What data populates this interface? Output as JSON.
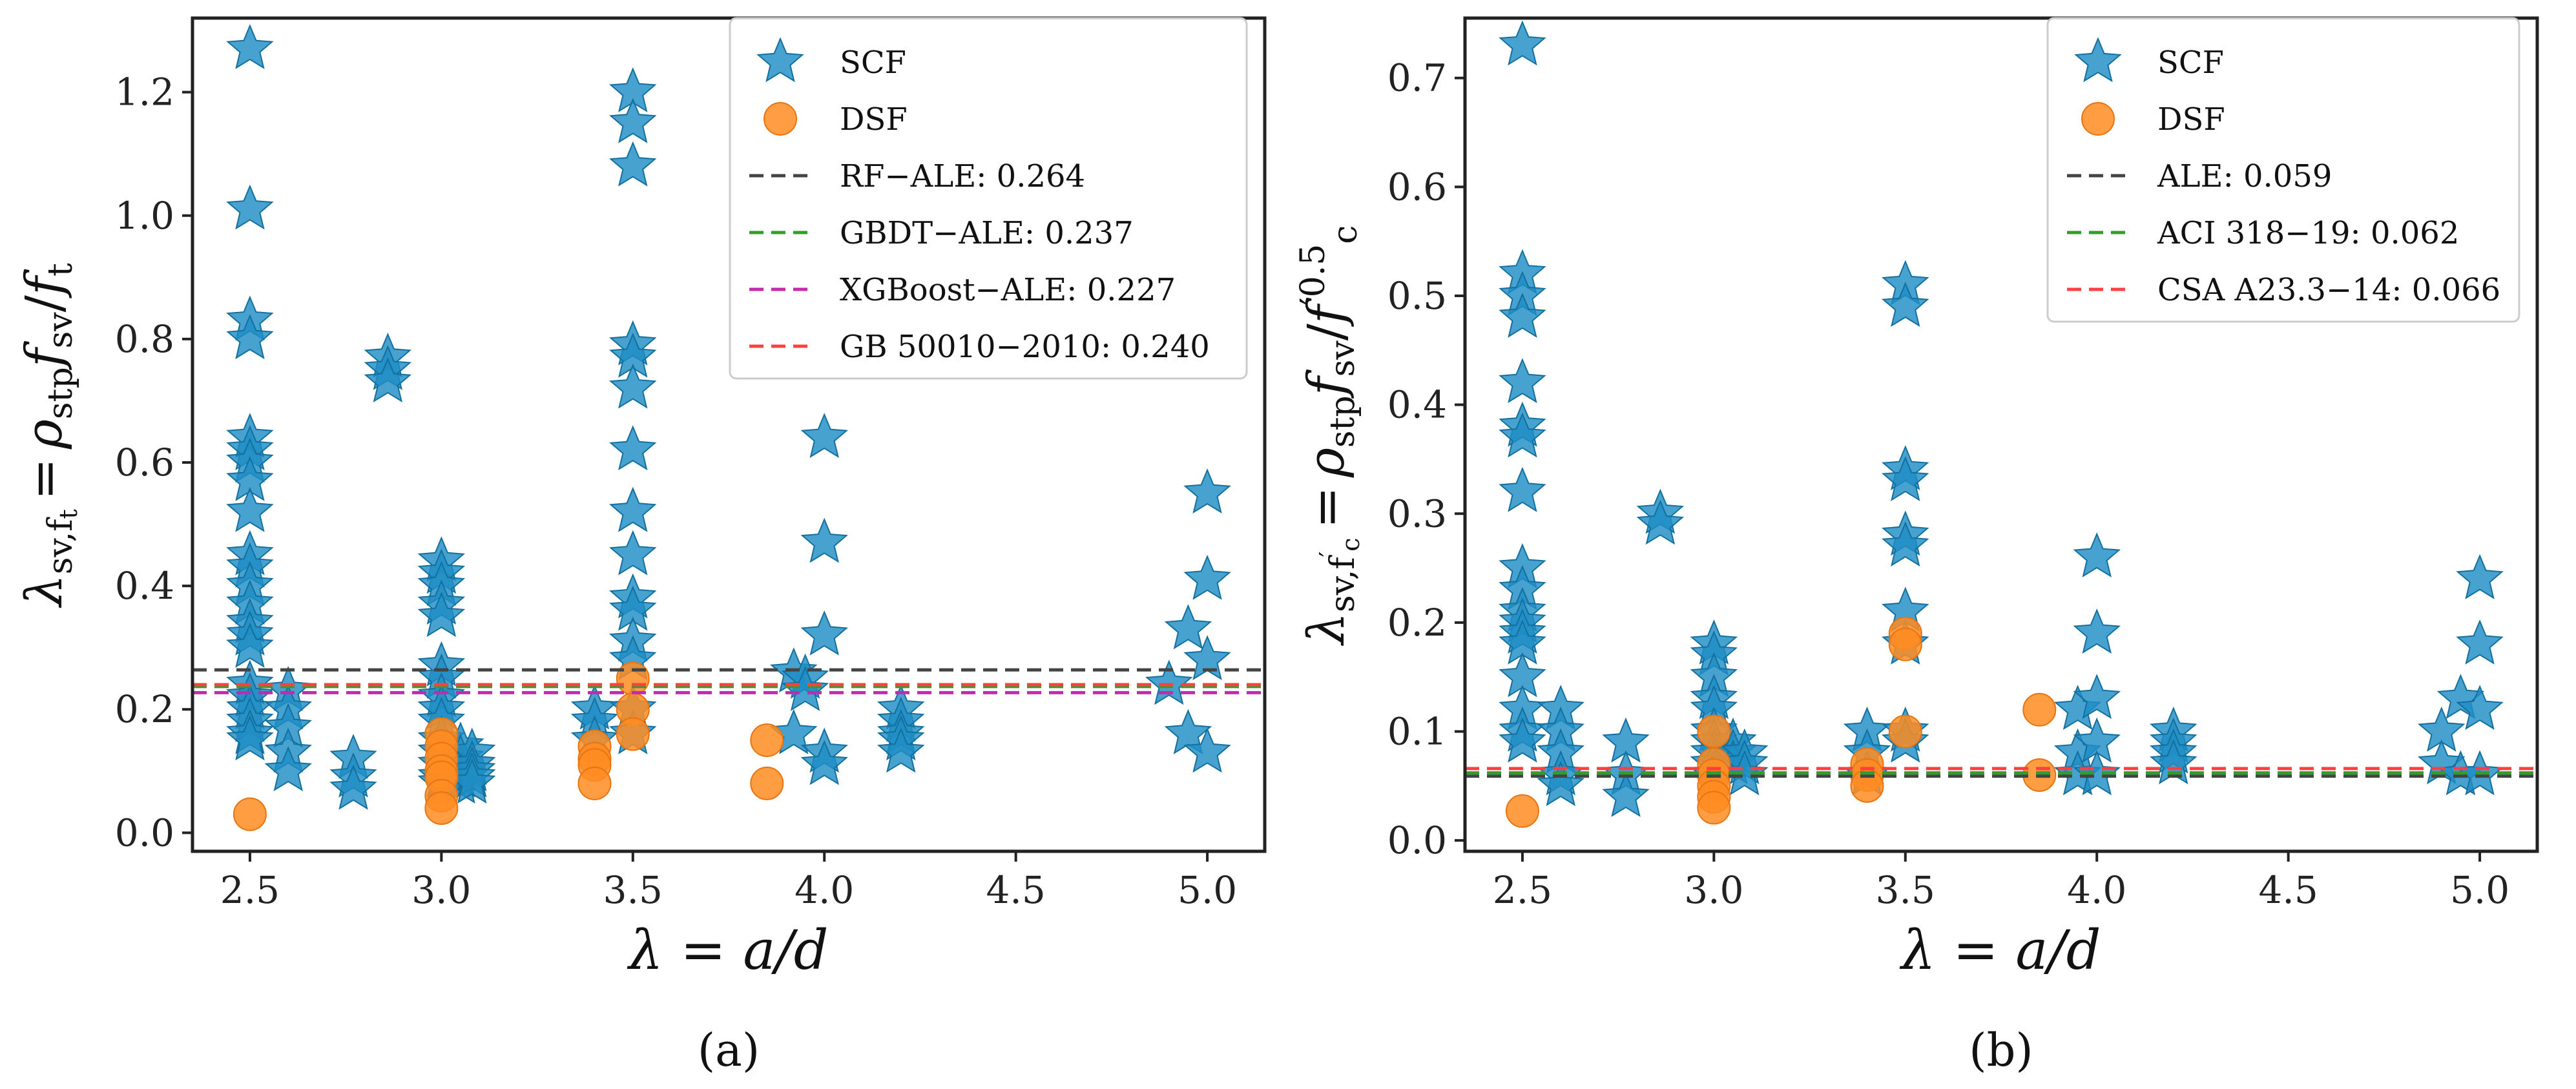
{
  "chart_data": [
    {
      "type": "scatter",
      "panel_label": "(a)",
      "xlabel": "λ = a/d",
      "ylabel": {
        "lambda": "λ",
        "lambda_sub": "sv,",
        "ft": "f",
        "ft_sub": "t",
        "eq": "=",
        "rho": "ρ",
        "rho_sub": "stp",
        "fsv": "f",
        "fsv_sub": "sv",
        "slash": "/",
        "fden": "f",
        "fden_sub": "t"
      },
      "xlim": [
        2.35,
        5.15
      ],
      "ylim": [
        -0.03,
        1.32
      ],
      "xticks": [
        "2.5",
        "3.0",
        "3.5",
        "4.0",
        "4.5",
        "5.0"
      ],
      "xtick_values": [
        2.5,
        3.0,
        3.5,
        4.0,
        4.5,
        5.0
      ],
      "yticks": [
        "0.0",
        "0.2",
        "0.4",
        "0.6",
        "0.8",
        "1.0",
        "1.2"
      ],
      "ytick_values": [
        0.0,
        0.2,
        0.4,
        0.6,
        0.8,
        1.0,
        1.2
      ],
      "legend_position": "top-right",
      "series": [
        {
          "name": "SCF",
          "marker": "star",
          "color": "#1f8ec4",
          "x": [
            2.5,
            2.5,
            2.5,
            2.5,
            2.5,
            2.5,
            2.5,
            2.5,
            2.5,
            2.5,
            2.5,
            2.5,
            2.5,
            2.5,
            2.5,
            2.5,
            2.5,
            2.5,
            2.5,
            2.5,
            2.5,
            2.5,
            2.6,
            2.6,
            2.6,
            2.6,
            2.6,
            2.77,
            2.77,
            2.77,
            2.86,
            2.86,
            2.86,
            3.0,
            3.0,
            3.0,
            3.0,
            3.0,
            3.0,
            3.0,
            3.0,
            3.0,
            3.0,
            3.0,
            3.0,
            3.0,
            3.0,
            3.0,
            3.05,
            3.05,
            3.05,
            3.05,
            3.05,
            3.08,
            3.08,
            3.08,
            3.08,
            3.08,
            3.4,
            3.4,
            3.4,
            3.5,
            3.5,
            3.5,
            3.5,
            3.5,
            3.5,
            3.5,
            3.5,
            3.5,
            3.5,
            3.5,
            3.5,
            3.5,
            3.5,
            3.5,
            3.92,
            3.92,
            3.95,
            3.95,
            4.0,
            4.0,
            4.0,
            4.0,
            4.0,
            4.2,
            4.2,
            4.2,
            4.2,
            4.2,
            4.9,
            4.95,
            4.95,
            5.0,
            5.0,
            5.0,
            5.0
          ],
          "y": [
            1.27,
            1.01,
            0.83,
            0.8,
            0.64,
            0.62,
            0.6,
            0.57,
            0.52,
            0.45,
            0.43,
            0.4,
            0.37,
            0.34,
            0.32,
            0.3,
            0.24,
            0.22,
            0.2,
            0.18,
            0.16,
            0.15,
            0.23,
            0.2,
            0.17,
            0.13,
            0.1,
            0.12,
            0.09,
            0.07,
            0.77,
            0.75,
            0.73,
            0.44,
            0.42,
            0.4,
            0.37,
            0.35,
            0.27,
            0.25,
            0.22,
            0.2,
            0.18,
            0.15,
            0.13,
            0.11,
            0.09,
            0.08,
            0.14,
            0.12,
            0.1,
            0.09,
            0.08,
            0.13,
            0.11,
            0.1,
            0.09,
            0.08,
            0.2,
            0.18,
            0.15,
            1.2,
            1.15,
            1.08,
            0.79,
            0.77,
            0.72,
            0.62,
            0.52,
            0.45,
            0.38,
            0.36,
            0.31,
            0.28,
            0.2,
            0.16,
            0.26,
            0.16,
            0.25,
            0.23,
            0.64,
            0.47,
            0.32,
            0.13,
            0.11,
            0.2,
            0.18,
            0.16,
            0.15,
            0.13,
            0.24,
            0.33,
            0.16,
            0.55,
            0.41,
            0.28,
            0.13
          ]
        },
        {
          "name": "DSF",
          "marker": "circle",
          "color": "#ff8c22",
          "x": [
            2.5,
            3.0,
            3.0,
            3.0,
            3.0,
            3.0,
            3.0,
            3.0,
            3.4,
            3.4,
            3.4,
            3.4,
            3.5,
            3.5,
            3.5,
            3.85,
            3.85
          ],
          "y": [
            0.03,
            0.16,
            0.14,
            0.12,
            0.1,
            0.09,
            0.06,
            0.04,
            0.14,
            0.12,
            0.11,
            0.08,
            0.25,
            0.2,
            0.16,
            0.15,
            0.08
          ]
        }
      ],
      "reference_lines": [
        {
          "name": "RF−ALE: 0.264",
          "value": 0.264,
          "color": "#444444"
        },
        {
          "name": "GBDT−ALE: 0.237",
          "value": 0.237,
          "color": "#2ca02c"
        },
        {
          "name": "XGBoost−ALE: 0.227",
          "value": 0.227,
          "color": "#c02bb0"
        },
        {
          "name": "GB 50010−2010: 0.240",
          "value": 0.24,
          "color": "#ff4040"
        }
      ]
    },
    {
      "type": "scatter",
      "panel_label": "(b)",
      "xlabel": "λ = a/d",
      "ylabel": {
        "lambda": "λ",
        "lambda_sub": "sv,",
        "fc": "f",
        "fc_prime": "′",
        "fc_sub": "c",
        "eq": "=",
        "rho": "ρ",
        "rho_sub": "stp",
        "fsv": "f",
        "fsv_sub": "sv",
        "slash": "/",
        "fden": "f",
        "fden_prime": "′",
        "fden_exp": "0.5",
        "fden_sub": "c"
      },
      "xlim": [
        2.35,
        5.15
      ],
      "ylim": [
        -0.01,
        0.755
      ],
      "xticks": [
        "2.5",
        "3.0",
        "3.5",
        "4.0",
        "4.5",
        "5.0"
      ],
      "xtick_values": [
        2.5,
        3.0,
        3.5,
        4.0,
        4.5,
        5.0
      ],
      "yticks": [
        "0.0",
        "0.1",
        "0.2",
        "0.3",
        "0.4",
        "0.5",
        "0.6",
        "0.7"
      ],
      "ytick_values": [
        0.0,
        0.1,
        0.2,
        0.3,
        0.4,
        0.5,
        0.6,
        0.7
      ],
      "legend_position": "top-right",
      "series": [
        {
          "name": "SCF",
          "marker": "star",
          "color": "#1f8ec4",
          "x": [
            2.5,
            2.5,
            2.5,
            2.5,
            2.5,
            2.5,
            2.5,
            2.5,
            2.5,
            2.5,
            2.5,
            2.5,
            2.5,
            2.5,
            2.5,
            2.5,
            2.5,
            2.5,
            2.6,
            2.6,
            2.6,
            2.6,
            2.6,
            2.77,
            2.77,
            2.77,
            2.86,
            2.86,
            3.0,
            3.0,
            3.0,
            3.0,
            3.0,
            3.0,
            3.0,
            3.0,
            3.0,
            3.0,
            3.05,
            3.05,
            3.05,
            3.08,
            3.08,
            3.08,
            3.4,
            3.4,
            3.4,
            3.5,
            3.5,
            3.5,
            3.5,
            3.5,
            3.5,
            3.5,
            3.5,
            3.5,
            3.5,
            3.95,
            3.95,
            3.95,
            4.0,
            4.0,
            4.0,
            4.0,
            4.0,
            4.2,
            4.2,
            4.2,
            4.2,
            4.9,
            4.9,
            4.95,
            4.95,
            5.0,
            5.0,
            5.0,
            5.0
          ],
          "y": [
            0.73,
            0.52,
            0.5,
            0.48,
            0.42,
            0.38,
            0.37,
            0.32,
            0.25,
            0.23,
            0.21,
            0.2,
            0.19,
            0.18,
            0.15,
            0.12,
            0.1,
            0.09,
            0.12,
            0.1,
            0.08,
            0.06,
            0.05,
            0.09,
            0.06,
            0.04,
            0.3,
            0.29,
            0.18,
            0.17,
            0.15,
            0.13,
            0.12,
            0.1,
            0.09,
            0.08,
            0.07,
            0.06,
            0.09,
            0.08,
            0.07,
            0.08,
            0.07,
            0.06,
            0.1,
            0.08,
            0.06,
            0.51,
            0.49,
            0.34,
            0.33,
            0.28,
            0.27,
            0.21,
            0.18,
            0.1,
            0.09,
            0.12,
            0.08,
            0.06,
            0.26,
            0.19,
            0.13,
            0.09,
            0.06,
            0.1,
            0.09,
            0.08,
            0.07,
            0.1,
            0.07,
            0.13,
            0.06,
            0.24,
            0.18,
            0.12,
            0.06
          ]
        },
        {
          "name": "DSF",
          "marker": "circle",
          "color": "#ff8c22",
          "x": [
            2.5,
            3.0,
            3.0,
            3.0,
            3.0,
            3.0,
            3.0,
            3.4,
            3.4,
            3.4,
            3.5,
            3.5,
            3.5,
            3.85,
            3.85
          ],
          "y": [
            0.027,
            0.1,
            0.07,
            0.06,
            0.05,
            0.04,
            0.03,
            0.07,
            0.06,
            0.05,
            0.19,
            0.18,
            0.1,
            0.12,
            0.06
          ]
        }
      ],
      "reference_lines": [
        {
          "name": "ALE: 0.059",
          "value": 0.059,
          "color": "#444444"
        },
        {
          "name": "ACI 318−19: 0.062",
          "value": 0.062,
          "color": "#2ca02c"
        },
        {
          "name": "CSA A23.3−14: 0.066",
          "value": 0.066,
          "color": "#ff4040"
        }
      ]
    }
  ]
}
